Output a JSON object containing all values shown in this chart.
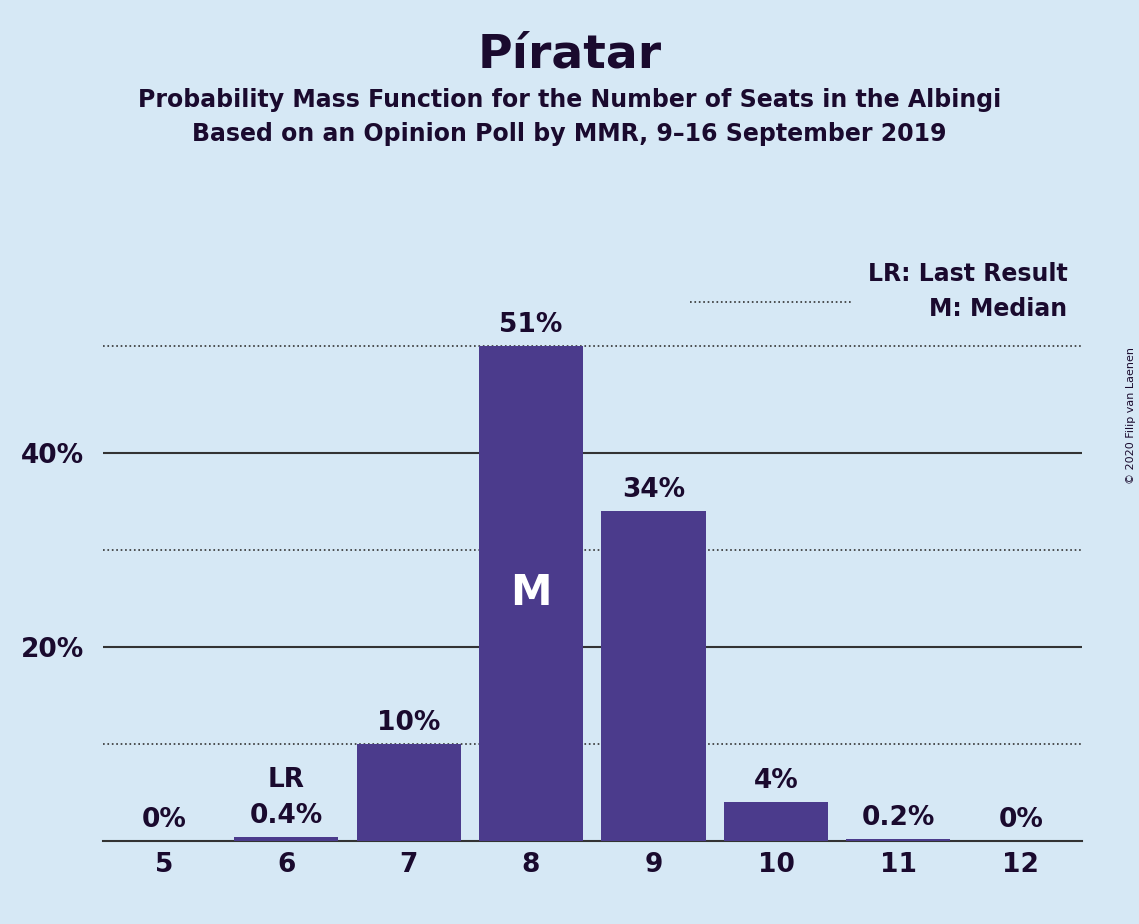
{
  "title": "Píratar",
  "subtitle1": "Probability Mass Function for the Number of Seats in the Albingi",
  "subtitle2": "Based on an Opinion Poll by MMR, 9–16 September 2019",
  "copyright": "© 2020 Filip van Laenen",
  "seats": [
    5,
    6,
    7,
    8,
    9,
    10,
    11,
    12
  ],
  "probabilities": [
    0.0,
    0.4,
    10.0,
    51.0,
    34.0,
    4.0,
    0.2,
    0.0
  ],
  "bar_color": "#4B3B8C",
  "background_color": "#D6E8F5",
  "median_seat": 8,
  "last_result_seat": 6,
  "dotted_lines": [
    10.0,
    30.0,
    51.0
  ],
  "solid_lines": [
    20.0,
    40.0
  ],
  "yticks": [
    0,
    20,
    40
  ],
  "ytick_labels": [
    "",
    "20%",
    "40%"
  ],
  "ylim": [
    0,
    60
  ],
  "xlim": [
    4.5,
    12.5
  ],
  "bar_labels": [
    "0%",
    "0.4%",
    "10%",
    "51%",
    "34%",
    "4%",
    "0.2%",
    "0%"
  ],
  "title_fontsize": 34,
  "subtitle_fontsize": 17,
  "label_fontsize": 19,
  "tick_fontsize": 19,
  "legend_fontsize": 17,
  "median_label": "M",
  "lr_label": "LR",
  "bar_width": 0.85,
  "text_color": "#1a0a2e",
  "line_color": "#333333"
}
